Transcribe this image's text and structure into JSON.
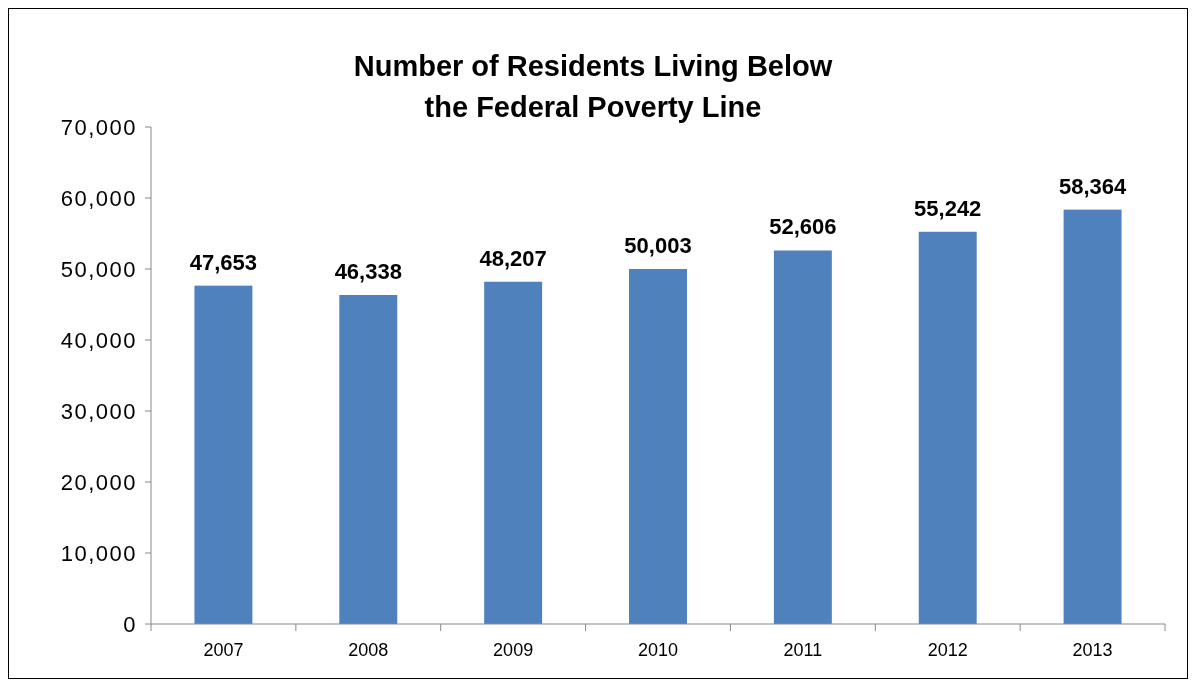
{
  "chart_data": {
    "type": "bar",
    "title": "Number of Residents Living Below\nthe Federal Poverty Line",
    "categories": [
      "2007",
      "2008",
      "2009",
      "2010",
      "2011",
      "2012",
      "2013"
    ],
    "values": [
      47653,
      46338,
      48207,
      50003,
      52606,
      55242,
      58364
    ],
    "color": "#4f81bd",
    "ylim": [
      0,
      70000
    ],
    "yticks": [
      {
        "value": 0,
        "label": "0"
      },
      {
        "value": 10000,
        "label": "10,000"
      },
      {
        "value": 20000,
        "label": "20,000"
      },
      {
        "value": 30000,
        "label": "30,000"
      },
      {
        "value": 40000,
        "label": "40,000"
      },
      {
        "value": 50000,
        "label": "50,000"
      },
      {
        "value": 60000,
        "label": "60,000"
      },
      {
        "value": 70000,
        "label": "70,000"
      }
    ],
    "value_labels": [
      "47,653",
      "46,338",
      "48,207",
      "50,003",
      "52,606",
      "55,242",
      "58,364"
    ],
    "grid": false,
    "legend": false
  }
}
